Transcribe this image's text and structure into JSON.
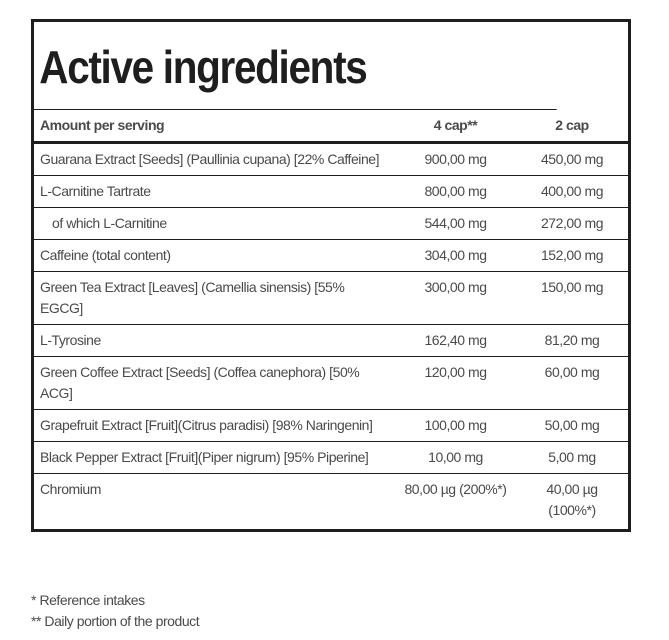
{
  "title": "Active ingredients",
  "columns": [
    "Amount per serving",
    "4 cap**",
    "2 cap"
  ],
  "rows": [
    {
      "name": "Guarana Extract [Seeds] (Paullinia cupana) [22% Caffeine]",
      "cap4": "900,00 mg",
      "cap2": "450,00 mg"
    },
    {
      "name": "L-Carnitine Tartrate",
      "cap4": "800,00 mg",
      "cap2": "400,00 mg"
    },
    {
      "name": "of which L-Carnitine",
      "cap4": "544,00 mg",
      "cap2": "272,00 mg"
    },
    {
      "name": "Caffeine (total content)",
      "cap4": "304,00 mg",
      "cap2": "152,00 mg"
    },
    {
      "name": "Green Tea Extract [Leaves] (Camellia sinensis) [55% EGCG]",
      "cap4": "300,00 mg",
      "cap2": "150,00 mg"
    },
    {
      "name": "L-Tyrosine",
      "cap4": "162,40 mg",
      "cap2": "81,20 mg"
    },
    {
      "name": "Green Coffee Extract [Seeds] (Coffea canephora) [50% ACG]",
      "cap4": "120,00 mg",
      "cap2": "60,00 mg"
    },
    {
      "name": "Grapefruit Extract [Fruit](Citrus paradisi) [98% Naringenin]",
      "cap4": "100,00 mg",
      "cap2": "50,00 mg"
    },
    {
      "name": "Black Pepper Extract [Fruit](Piper nigrum) [95% Piperine]",
      "cap4": "10,00 mg",
      "cap2": "5,00 mg"
    },
    {
      "name": "Chromium",
      "cap4": "80,00 µg (200%*)",
      "cap2": "40,00 µg (100%*)"
    }
  ],
  "notes": [
    "* Reference intakes",
    "** Daily portion of the product"
  ]
}
